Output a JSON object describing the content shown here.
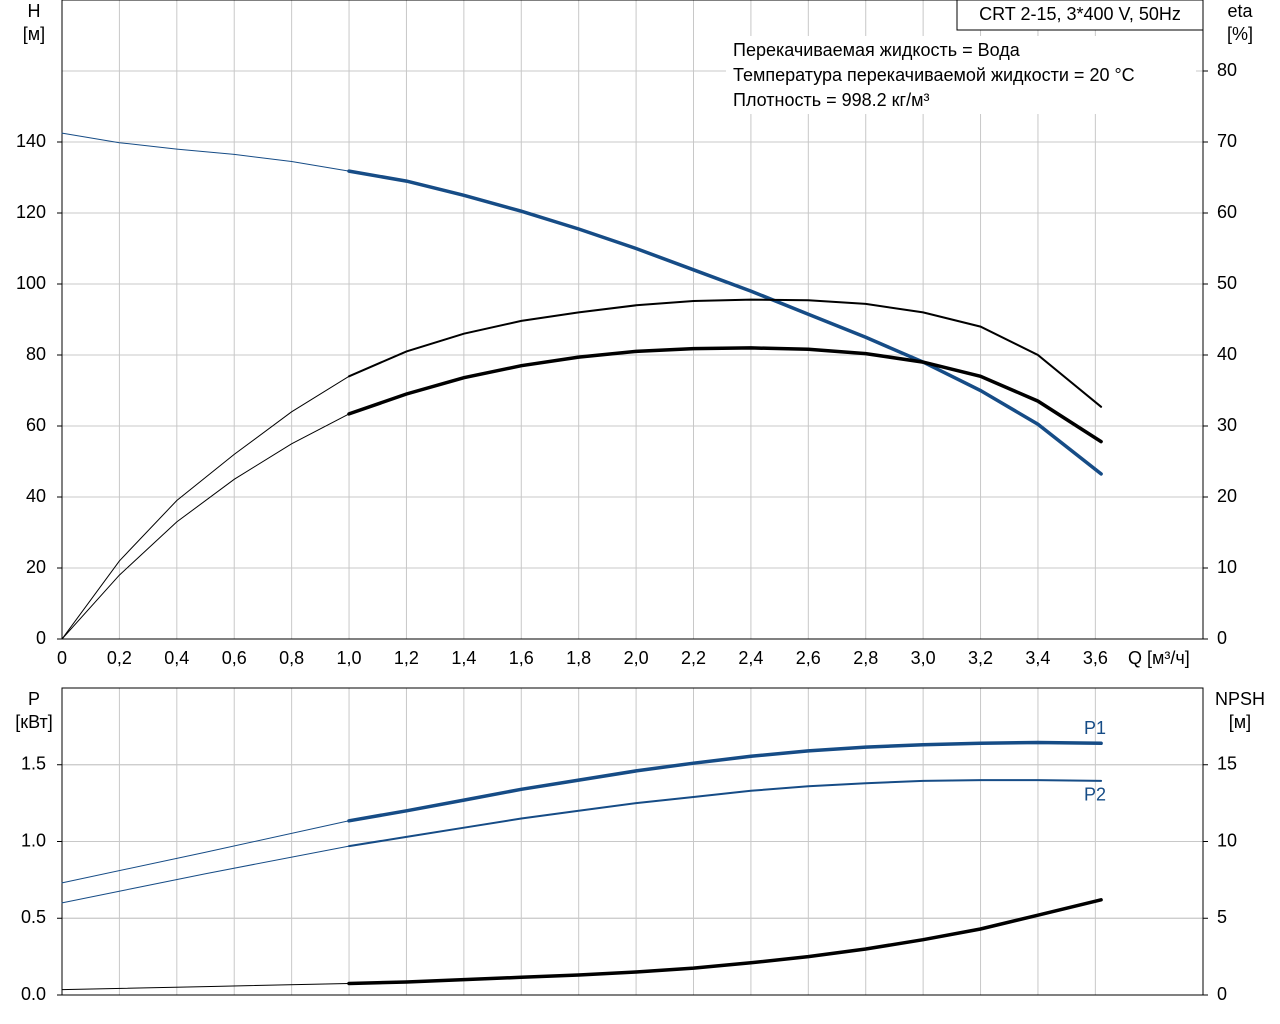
{
  "chart_data": [
    {
      "type": "line",
      "title": "CRT 2-15, 3*400 V, 50Hz",
      "notes": [
        "Перекачиваемая жидкость = Вода",
        "Температура перекачиваемой жидкости = 20 °C",
        "Плотность = 998.2 кг/м³"
      ],
      "x_label": "Q [м³/ч]",
      "y_label": [
        "H",
        "[м]"
      ],
      "y2_label": [
        "eta",
        "[%]"
      ],
      "xlim": [
        0,
        3.975
      ],
      "ylim": [
        0,
        180
      ],
      "y2lim": [
        0,
        90
      ],
      "grid": true,
      "xticks": [
        0,
        {
          "value": 0.2,
          "label": "0,2"
        },
        {
          "value": 0.4,
          "label": "0,4"
        },
        {
          "value": 0.6,
          "label": "0,6"
        },
        {
          "value": 0.8,
          "label": "0,8"
        },
        {
          "value": 1.0,
          "label": "1,0"
        },
        {
          "value": 1.2,
          "label": "1,2"
        },
        {
          "value": 1.4,
          "label": "1,4"
        },
        {
          "value": 1.6,
          "label": "1,6"
        },
        {
          "value": 1.8,
          "label": "1,8"
        },
        {
          "value": 2.0,
          "label": "2,0"
        },
        {
          "value": 2.2,
          "label": "2,2"
        },
        {
          "value": 2.4,
          "label": "2,4"
        },
        {
          "value": 2.6,
          "label": "2,6"
        },
        {
          "value": 2.8,
          "label": "2,8"
        },
        {
          "value": 3.0,
          "label": "3,0"
        },
        {
          "value": 3.2,
          "label": "3,2"
        },
        {
          "value": 3.4,
          "label": "3,4"
        },
        {
          "value": 3.6,
          "label": "3,6"
        }
      ],
      "yticks": [
        0,
        20,
        40,
        60,
        80,
        100,
        120,
        140
      ],
      "y2ticks": [
        0,
        10,
        20,
        30,
        40,
        50,
        60,
        70,
        80
      ],
      "series": [
        {
          "color": "#164c86",
          "width": 1,
          "x": [
            0,
            0.2,
            0.4,
            0.6,
            0.8,
            1.0
          ],
          "values": [
            142.5,
            139.8,
            138,
            136.5,
            134.5,
            131.8
          ]
        },
        {
          "color": "#164c86",
          "width": 3.5,
          "x": [
            1.0,
            1.2,
            1.4,
            1.6,
            1.8,
            2.0,
            2.2,
            2.4,
            2.6,
            2.8,
            3.0,
            3.2,
            3.4,
            3.62
          ],
          "values": [
            131.8,
            129,
            125,
            120.5,
            115.5,
            110,
            104,
            98,
            91.5,
            85,
            78,
            70,
            60.5,
            46.5
          ]
        },
        {
          "color": "#000000",
          "width": 1,
          "axis": "y2",
          "x": [
            0,
            0.2,
            0.4,
            0.6,
            0.8,
            1.0
          ],
          "values": [
            0,
            11,
            19.5,
            26,
            32,
            37
          ]
        },
        {
          "color": "#000000",
          "width": 2,
          "axis": "y2",
          "x": [
            1.0,
            1.2,
            1.4,
            1.6,
            1.8,
            2.0,
            2.2,
            2.4,
            2.6,
            2.8,
            3.0,
            3.2,
            3.4,
            3.62
          ],
          "values": [
            37,
            40.5,
            43,
            44.8,
            46,
            47,
            47.6,
            47.8,
            47.7,
            47.2,
            46,
            44,
            40,
            32.7
          ]
        },
        {
          "color": "#000000",
          "width": 1,
          "axis": "y2",
          "x": [
            0,
            0.2,
            0.4,
            0.6,
            0.8,
            1.0
          ],
          "values": [
            0,
            9,
            16.5,
            22.5,
            27.5,
            31.7
          ]
        },
        {
          "color": "#000000",
          "width": 3.5,
          "axis": "y2",
          "x": [
            1.0,
            1.2,
            1.4,
            1.6,
            1.8,
            2.0,
            2.2,
            2.4,
            2.6,
            2.8,
            3.0,
            3.2,
            3.4,
            3.62
          ],
          "values": [
            31.7,
            34.5,
            36.8,
            38.5,
            39.7,
            40.5,
            40.9,
            41,
            40.8,
            40.2,
            39,
            37,
            33.5,
            27.8
          ]
        }
      ]
    },
    {
      "type": "line",
      "y_label": [
        "P",
        "[кВт]"
      ],
      "y2_label": [
        "NPSH",
        "[м]"
      ],
      "xlim": [
        0,
        3.975
      ],
      "ylim": [
        0,
        2.0
      ],
      "y2lim": [
        0,
        20
      ],
      "grid": true,
      "xticks": [
        0,
        0.2,
        0.4,
        0.6,
        0.8,
        1.0,
        1.2,
        1.4,
        1.6,
        1.8,
        2.0,
        2.2,
        2.4,
        2.6,
        2.8,
        3.0,
        3.2,
        3.4,
        3.6
      ],
      "yticks": [
        {
          "value": 0,
          "label": "0.0"
        },
        0.5,
        {
          "value": 1,
          "label": "1.0"
        },
        1.5
      ],
      "y2ticks": [
        0,
        5,
        10,
        15
      ],
      "series": [
        {
          "color": "#164c86",
          "width": 1,
          "x": [
            0,
            0.5,
            1.0
          ],
          "values": [
            0.73,
            0.93,
            1.135
          ]
        },
        {
          "name": "P1",
          "color": "#164c86",
          "width": 3.5,
          "x": [
            1.0,
            1.2,
            1.4,
            1.6,
            1.8,
            2.0,
            2.2,
            2.4,
            2.6,
            2.8,
            3.0,
            3.2,
            3.4,
            3.62
          ],
          "values": [
            1.135,
            1.2,
            1.27,
            1.34,
            1.4,
            1.46,
            1.51,
            1.555,
            1.59,
            1.615,
            1.63,
            1.64,
            1.645,
            1.64
          ]
        },
        {
          "color": "#164c86",
          "width": 1,
          "x": [
            0,
            0.5,
            1.0
          ],
          "values": [
            0.6,
            0.79,
            0.97
          ]
        },
        {
          "name": "P2",
          "color": "#164c86",
          "width": 2,
          "x": [
            1.0,
            1.2,
            1.4,
            1.6,
            1.8,
            2.0,
            2.2,
            2.4,
            2.6,
            2.8,
            3.0,
            3.2,
            3.4,
            3.62
          ],
          "values": [
            0.97,
            1.03,
            1.09,
            1.15,
            1.2,
            1.25,
            1.29,
            1.33,
            1.36,
            1.38,
            1.395,
            1.4,
            1.4,
            1.395
          ]
        },
        {
          "color": "#000000",
          "width": 1,
          "axis": "y2",
          "x": [
            0,
            0.5,
            1.0
          ],
          "values": [
            0.35,
            0.55,
            0.75
          ]
        },
        {
          "color": "#000000",
          "width": 3.5,
          "axis": "y2",
          "x": [
            1.0,
            1.2,
            1.4,
            1.6,
            1.8,
            2.0,
            2.2,
            2.4,
            2.6,
            2.8,
            3.0,
            3.2,
            3.4,
            3.62
          ],
          "values": [
            0.75,
            0.85,
            1,
            1.15,
            1.3,
            1.5,
            1.75,
            2.1,
            2.5,
            3,
            3.6,
            4.3,
            5.2,
            6.2
          ]
        }
      ]
    }
  ]
}
